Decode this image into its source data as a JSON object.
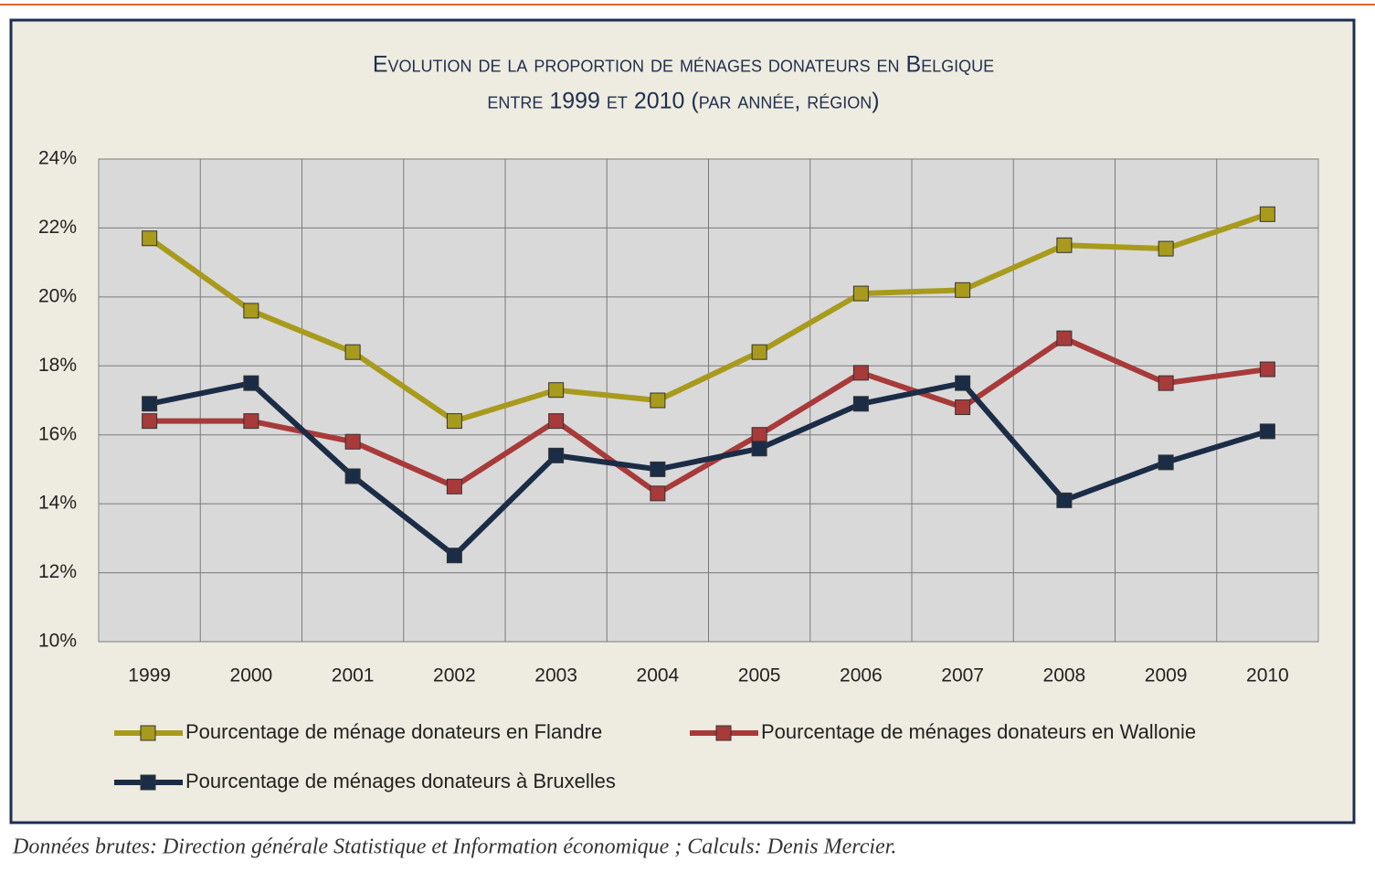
{
  "chart_data": {
    "type": "line",
    "title": "Evolution de la proportion de ménages donateurs  en Belgique",
    "subtitle": "entre 1999 et 2010 (par année, région)",
    "source": "Données brutes: Direction générale Statistique et Information économique ; Calculs: Denis Mercier.",
    "categories": [
      "1999",
      "2000",
      "2001",
      "2002",
      "2003",
      "2004",
      "2005",
      "2006",
      "2007",
      "2008",
      "2009",
      "2010"
    ],
    "series": [
      {
        "name": "Pourcentage de ménage donateurs en Flandre",
        "color": "#a89a1c",
        "values": [
          21.7,
          19.6,
          18.4,
          16.4,
          17.3,
          17.0,
          18.4,
          20.1,
          20.2,
          21.5,
          21.4,
          22.4
        ]
      },
      {
        "name": "Pourcentage de ménages donateurs en Wallonie",
        "color": "#a83a3a",
        "values": [
          16.4,
          16.4,
          15.8,
          14.5,
          16.4,
          14.3,
          16.0,
          17.8,
          16.8,
          18.8,
          17.5,
          17.9
        ]
      },
      {
        "name": "Pourcentage de ménages donateurs à Bruxelles",
        "color": "#1b2c46",
        "values": [
          16.9,
          17.5,
          14.8,
          12.5,
          15.4,
          15.0,
          15.6,
          16.9,
          17.5,
          14.1,
          15.2,
          16.1
        ]
      }
    ],
    "ylim": [
      10,
      24
    ],
    "yticks": [
      {
        "value": 10,
        "label": "10%"
      },
      {
        "value": 12,
        "label": "12%"
      },
      {
        "value": 14,
        "label": "14%"
      },
      {
        "value": 16,
        "label": "16%"
      },
      {
        "value": 18,
        "label": "18%"
      },
      {
        "value": 20,
        "label": "20%"
      },
      {
        "value": 22,
        "label": "22%"
      },
      {
        "value": 24,
        "label": "24%"
      }
    ],
    "grid": true,
    "legend": "bottom"
  }
}
